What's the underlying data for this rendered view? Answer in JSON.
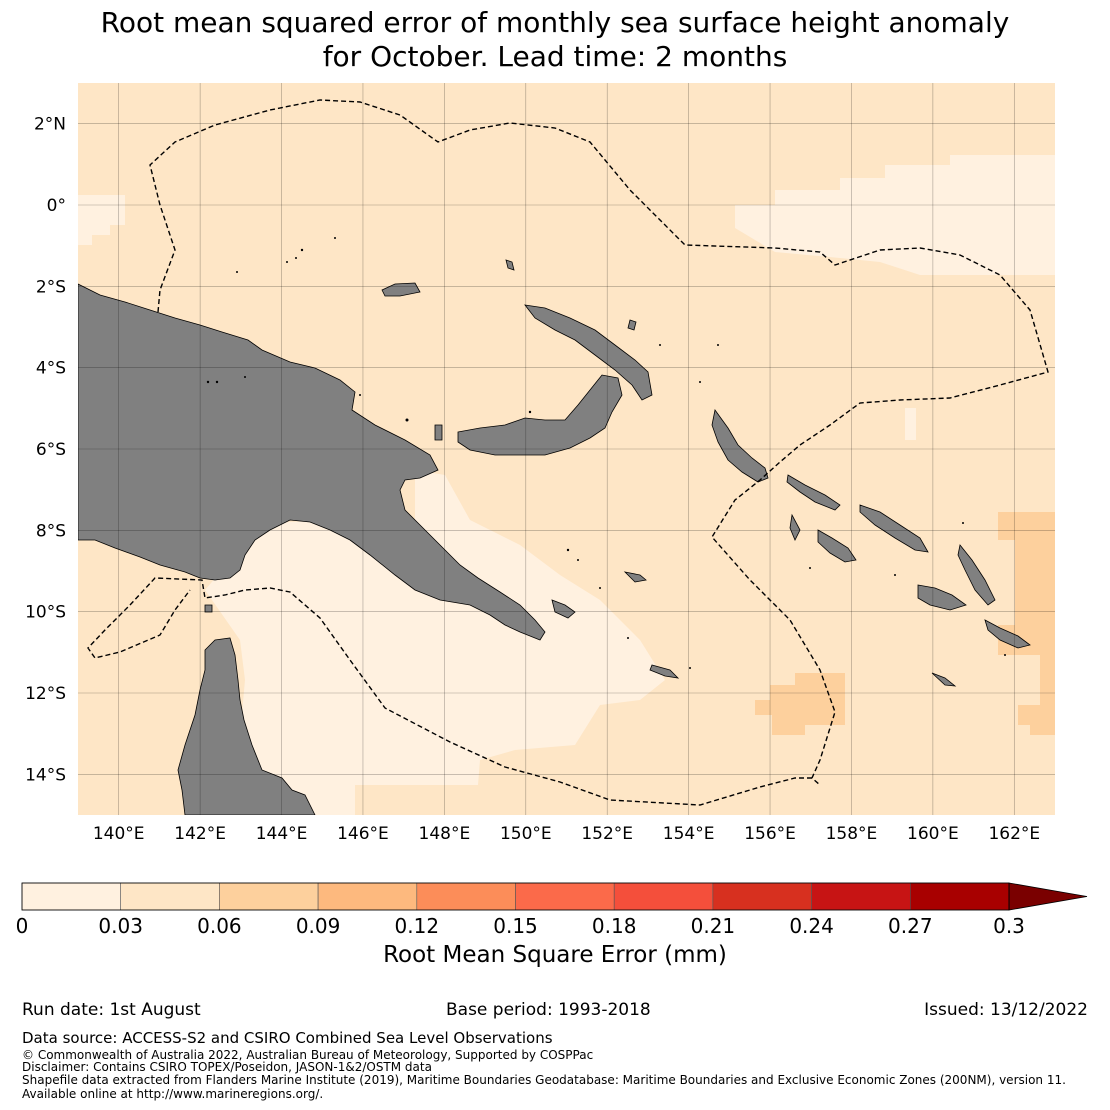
{
  "title": {
    "line1": "Root mean squared error of monthly sea surface height anomaly",
    "line2": "for October. Lead time: 2 months"
  },
  "map": {
    "lon_range": [
      139,
      163
    ],
    "lat_range": [
      -15,
      3
    ],
    "lon_ticks": [
      "140°E",
      "142°E",
      "144°E",
      "146°E",
      "148°E",
      "150°E",
      "152°E",
      "154°E",
      "156°E",
      "158°E",
      "160°E",
      "162°E"
    ],
    "lat_ticks": [
      "2°N",
      "0°",
      "2°S",
      "4°S",
      "6°S",
      "8°S",
      "10°S",
      "12°S",
      "14°S"
    ],
    "land_color": "#808080",
    "ocean_base_color": "#fee6c6",
    "grid": true,
    "boundary_style": "dashed"
  },
  "colorbar": {
    "title": "Root Mean Square Error (mm)",
    "ticks": [
      "0",
      "0.03",
      "0.06",
      "0.09",
      "0.12",
      "0.15",
      "0.18",
      "0.21",
      "0.24",
      "0.27",
      "0.3"
    ],
    "colors": [
      "#fff1e0",
      "#fee6c6",
      "#fdd09d",
      "#fdb97e",
      "#fc8d59",
      "#fb6a4a",
      "#f44f3b",
      "#d7301f",
      "#c71414",
      "#a80000",
      "#7a0000"
    ],
    "extend": "max"
  },
  "footer": {
    "run_date": "Run date: 1st August",
    "base_period": "Base period: 1993-2018",
    "issued": "Issued: 13/12/2022",
    "data_source": "Data source: ACCESS-S2 and CSIRO Combined Sea Level Observations",
    "copyright": "© Commonwealth of Australia 2022, Australian Bureau of Meteorology, Supported by COSPPac",
    "disclaimer": "Disclaimer: Contains CSIRO TOPEX/Poseidon, JASON-1&2/OSTM data",
    "shapefile": "Shapefile data extracted from Flanders Marine Institute (2019), Maritime Boundaries Geodatabase: Maritime Boundaries and Exclusive Economic Zones (200NM), version 11.",
    "available": "Available online at http://www.marineregions.org/."
  }
}
